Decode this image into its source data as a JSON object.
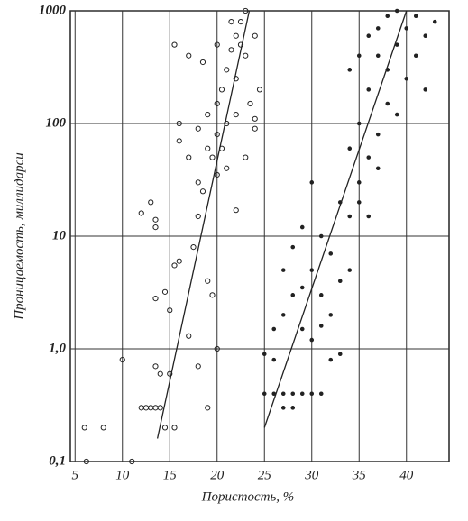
{
  "chart_data": {
    "type": "scatter",
    "x_label": "Пористость, %",
    "y_label": "Проницаемость, миллидарси",
    "log_y": true,
    "grid": true,
    "xlim": [
      4.5,
      44.5
    ],
    "ylim": [
      0.1,
      1000
    ],
    "xticks": [
      5,
      10,
      15,
      20,
      25,
      30,
      35,
      40
    ],
    "yticks": [
      {
        "value": 0.1,
        "label": "0,1"
      },
      {
        "value": 1,
        "label": "1,0"
      },
      10,
      100,
      1000
    ],
    "series": [
      {
        "marker": "open",
        "color": "#222",
        "x": [
          6,
          8,
          6.2,
          11,
          10,
          12,
          12.5,
          13,
          13.5,
          14,
          14.5,
          15.5,
          13.5,
          14,
          13.5,
          14.5,
          15,
          15.5,
          16,
          15,
          12,
          13,
          13.5,
          13.5,
          17,
          18,
          17.5,
          18,
          19,
          19.5,
          20,
          19,
          17,
          18,
          18.5,
          19,
          19.5,
          20,
          20,
          16,
          16,
          18,
          19,
          20,
          20.5,
          21,
          21.5,
          22,
          22.5,
          23,
          21,
          22,
          23,
          24,
          24.5,
          24,
          23,
          22,
          21,
          15.5,
          17,
          18.5,
          20,
          21.5,
          22.5,
          23.5,
          20.5,
          24,
          22
        ],
        "values": [
          0.2,
          0.2,
          0.1,
          0.1,
          0.8,
          0.3,
          0.3,
          0.3,
          0.3,
          0.3,
          0.2,
          0.2,
          0.7,
          0.6,
          2.8,
          3.2,
          2.2,
          5.5,
          6,
          0.6,
          16,
          20,
          14,
          12,
          1.3,
          0.7,
          8,
          15,
          4,
          3,
          1,
          0.3,
          50,
          30,
          25,
          60,
          50,
          80,
          35,
          100,
          70,
          90,
          120,
          150,
          200,
          300,
          450,
          600,
          800,
          1000,
          100,
          250,
          400,
          600,
          200,
          90,
          50,
          17,
          40,
          500,
          400,
          350,
          500,
          800,
          500,
          150,
          60,
          110,
          120
        ]
      },
      {
        "marker": "filled",
        "color": "#222",
        "x": [
          25,
          26,
          27,
          28,
          29,
          30,
          31,
          26,
          25,
          27,
          28,
          26,
          27,
          27,
          28,
          28,
          29,
          29,
          30,
          31,
          30,
          31,
          32,
          32,
          33,
          33,
          34,
          34,
          35,
          35,
          36,
          36,
          37,
          37,
          38,
          38,
          39,
          39,
          40,
          40,
          41,
          41,
          42,
          42,
          43,
          36,
          37,
          34,
          35,
          38,
          39,
          37,
          36,
          32,
          30,
          29,
          31,
          33,
          34,
          35
        ],
        "values": [
          0.4,
          0.4,
          0.4,
          0.4,
          0.4,
          0.4,
          0.4,
          0.8,
          0.9,
          0.3,
          0.3,
          1.5,
          2,
          5,
          3,
          8,
          1.5,
          12,
          5,
          3,
          30,
          10,
          7,
          2,
          0.9,
          20,
          15,
          60,
          30,
          100,
          200,
          50,
          80,
          400,
          300,
          150,
          500,
          1000,
          700,
          250,
          400,
          900,
          600,
          200,
          800,
          600,
          700,
          300,
          400,
          900,
          120,
          40,
          15,
          0.8,
          1.2,
          3.5,
          1.6,
          4,
          5,
          20
        ]
      }
    ],
    "lines": [
      {
        "color": "#222",
        "x": [
          13.7,
          23.4
        ],
        "y": [
          0.16,
          1000
        ]
      },
      {
        "color": "#222",
        "x": [
          25,
          40
        ],
        "y": [
          0.2,
          1000
        ]
      }
    ]
  }
}
